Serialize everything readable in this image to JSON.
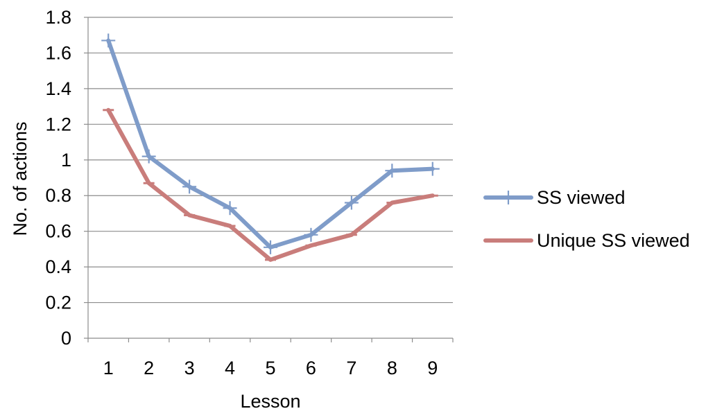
{
  "chart_data": {
    "type": "line",
    "title": "",
    "xlabel": "Lesson",
    "ylabel": "No. of actions",
    "categories": [
      "1",
      "2",
      "3",
      "4",
      "5",
      "6",
      "7",
      "8",
      "9"
    ],
    "ylim": [
      0,
      1.8
    ],
    "yticks": [
      "0",
      "0.2",
      "0.4",
      "0.6",
      "0.8",
      "1",
      "1.2",
      "1.4",
      "1.6",
      "1.8"
    ],
    "grid": true,
    "legend_position": "right",
    "series": [
      {
        "name": "SS viewed",
        "color": "#7f9cc9",
        "marker": "plus",
        "values": [
          1.67,
          1.02,
          0.85,
          0.73,
          0.51,
          0.58,
          0.76,
          0.94,
          0.95
        ]
      },
      {
        "name": "Unique SS viewed",
        "color": "#c97d7b",
        "marker": "dash",
        "values": [
          1.28,
          0.87,
          0.69,
          0.63,
          0.44,
          0.52,
          0.58,
          0.76,
          0.8
        ]
      }
    ]
  }
}
